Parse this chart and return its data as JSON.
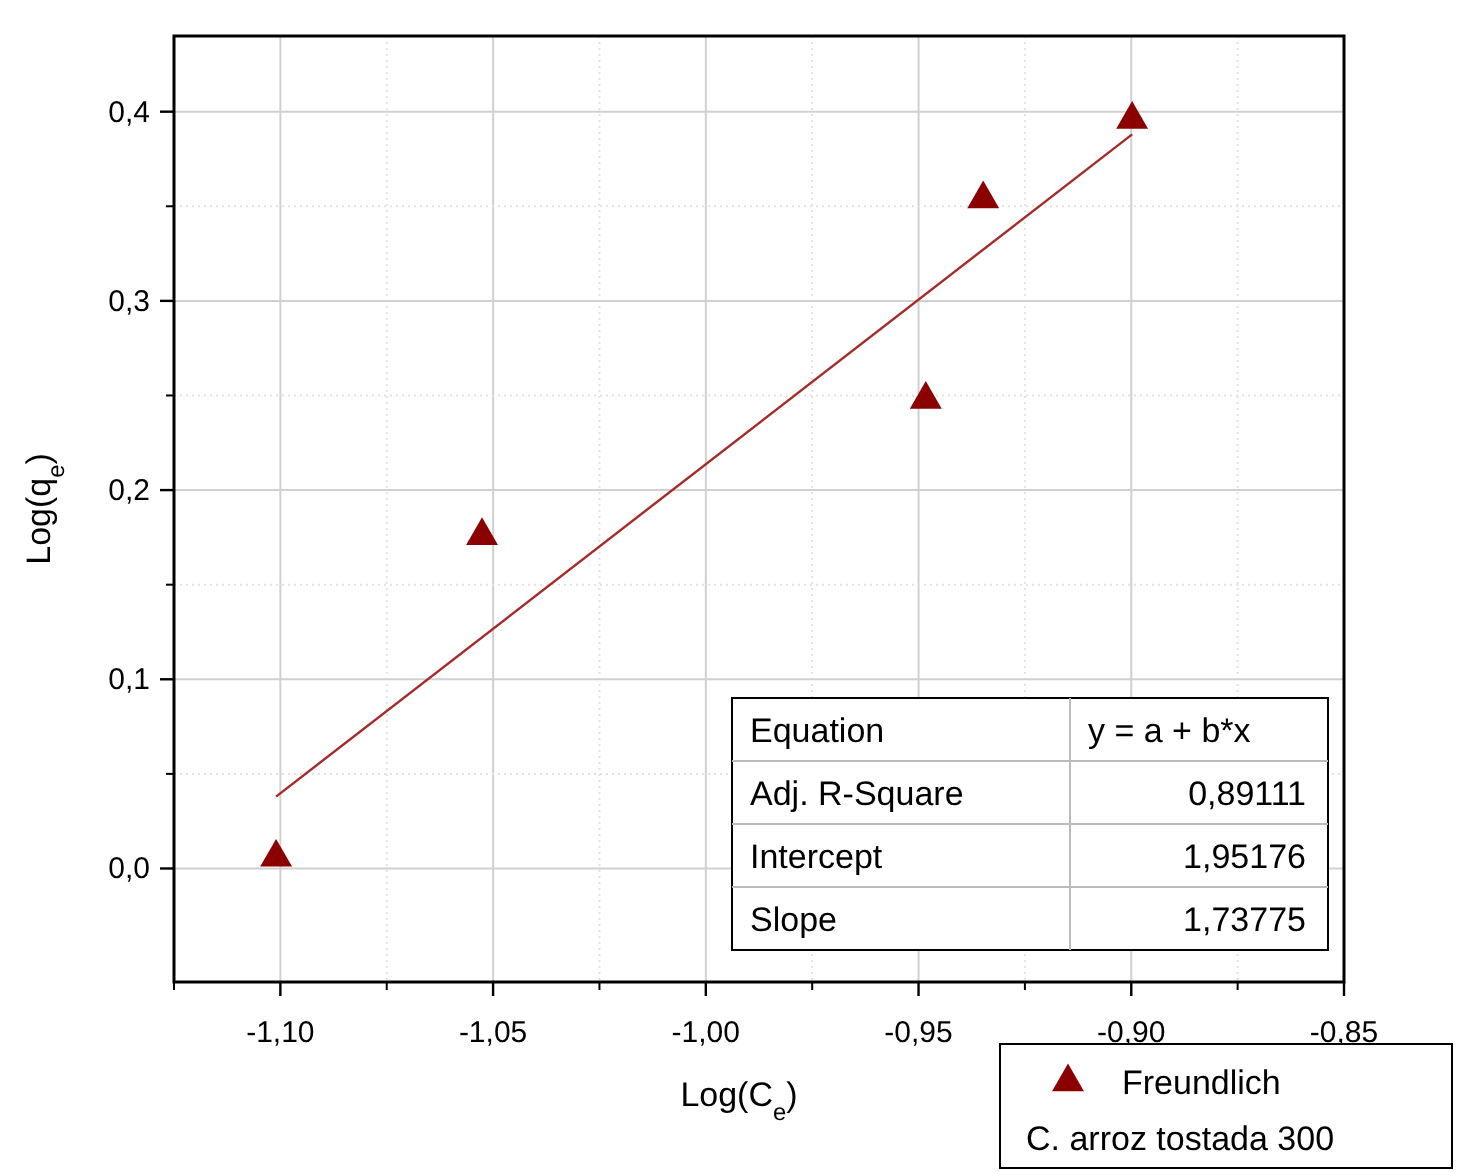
{
  "chart_data": {
    "type": "scatter",
    "xlabel": "Log(C$_{e}$)",
    "ylabel": "Log(q$_{e}$)",
    "xlim": [
      -1.125,
      -0.85
    ],
    "ylim": [
      -0.06,
      0.44
    ],
    "xticks": [
      {
        "value": -1.1,
        "label": "-1,10"
      },
      {
        "value": -1.05,
        "label": "-1,05"
      },
      {
        "value": -1.0,
        "label": "-1,00"
      },
      {
        "value": -0.95,
        "label": "-0,95"
      },
      {
        "value": -0.9,
        "label": "-0,90"
      },
      {
        "value": -0.85,
        "label": "-0,85"
      }
    ],
    "yticks": [
      {
        "value": 0,
        "label": "0,0"
      },
      {
        "value": 0.1,
        "label": "0,1"
      },
      {
        "value": 0.2,
        "label": "0,2"
      },
      {
        "value": 0.3,
        "label": "0,3"
      },
      {
        "value": 0.4,
        "label": "0,4"
      }
    ],
    "grid": true,
    "legend": "bottom right",
    "series": [
      {
        "name": "Freundlich",
        "marker": "triangle",
        "color": "#8b0000",
        "x": [
          -1.101,
          -1.0526,
          -0.9483,
          -0.9348,
          -0.8998
        ],
        "values": [
          0.008,
          0.178,
          0.25,
          0.356,
          0.398
        ]
      },
      {
        "type": "line",
        "marker": "none",
        "color": "#a52a2a",
        "x": [
          -1.101,
          -0.8998
        ],
        "values": [
          0.038,
          0.388
        ]
      }
    ],
    "annotations": [
      "C. arroz tostada 300",
      "Equation",
      "y = a + b*x",
      "Adj. R-Square",
      "0,89111",
      "Intercept",
      "1,95176",
      "Slope",
      "1,73775"
    ]
  }
}
